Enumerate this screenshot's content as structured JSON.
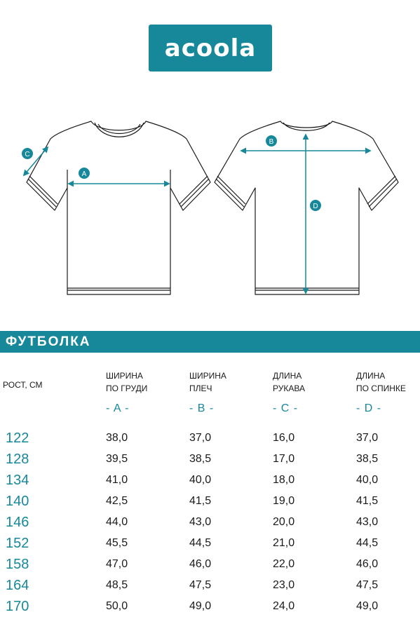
{
  "brand": {
    "logo_text": "acoola"
  },
  "diagram": {
    "labels": {
      "a": "A",
      "b": "B",
      "c": "C",
      "d": "D"
    },
    "colors": {
      "accent": "#17889a",
      "outline": "#1a1a1a"
    }
  },
  "section": {
    "title": "ФУТБОЛКА"
  },
  "table": {
    "height_header": "РОСТ, СМ",
    "columns": [
      {
        "line1": "ШИРИНА",
        "line2": "ПО ГРУДИ",
        "letter": "- A -"
      },
      {
        "line1": "ШИРИНА",
        "line2": "ПЛЕЧ",
        "letter": "- B -"
      },
      {
        "line1": "ДЛИНА",
        "line2": "РУКАВА",
        "letter": "- C -"
      },
      {
        "line1": "ДЛИНА",
        "line2": "ПО СПИНКЕ",
        "letter": "- D -"
      }
    ],
    "rows": [
      {
        "height": "122",
        "a": "38,0",
        "b": "37,0",
        "c": "16,0",
        "d": "37,0"
      },
      {
        "height": "128",
        "a": "39,5",
        "b": "38,5",
        "c": "17,0",
        "d": "38,5"
      },
      {
        "height": "134",
        "a": "41,0",
        "b": "40,0",
        "c": "18,0",
        "d": "40,0"
      },
      {
        "height": "140",
        "a": "42,5",
        "b": "41,5",
        "c": "19,0",
        "d": "41,5"
      },
      {
        "height": "146",
        "a": "44,0",
        "b": "43,0",
        "c": "20,0",
        "d": "43,0"
      },
      {
        "height": "152",
        "a": "45,5",
        "b": "44,5",
        "c": "21,0",
        "d": "44,5"
      },
      {
        "height": "158",
        "a": "47,0",
        "b": "46,0",
        "c": "22,0",
        "d": "46,0"
      },
      {
        "height": "164",
        "a": "48,5",
        "b": "47,5",
        "c": "23,0",
        "d": "47,5"
      },
      {
        "height": "170",
        "a": "50,0",
        "b": "49,0",
        "c": "24,0",
        "d": "49,0"
      }
    ]
  }
}
